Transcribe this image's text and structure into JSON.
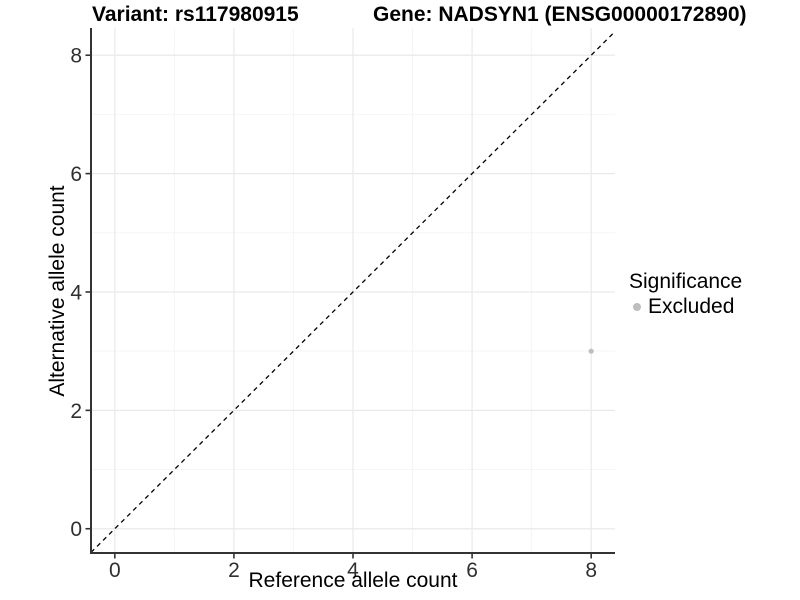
{
  "titles": {
    "variant": "Variant: rs117980915",
    "gene": "Gene: NADSYN1 (ENSG00000172890)"
  },
  "axes": {
    "x_label": "Reference allele count",
    "y_label": "Alternative allele count"
  },
  "legend": {
    "title": "Significance",
    "items": [
      {
        "label": "Excluded",
        "color": "#bebebe"
      }
    ]
  },
  "colors": {
    "background": "#ffffff",
    "point": "#bebebe",
    "grid_major": "#e9e9e9",
    "grid_minor": "#f5f5f5",
    "axis_line": "#333333",
    "tick_text": "#303030",
    "identity_line": "#000000"
  },
  "chart_data": {
    "type": "scatter",
    "title": "Variant: rs117980915 | Gene: NADSYN1 (ENSG00000172890)",
    "xlabel": "Reference allele count",
    "ylabel": "Alternative allele count",
    "xlim": [
      -0.4,
      8.4
    ],
    "ylim": [
      -0.41,
      8.46
    ],
    "x_ticks": [
      0,
      2,
      4,
      6,
      8
    ],
    "y_ticks": [
      0,
      2,
      4,
      6,
      8
    ],
    "x_minor_ticks": [
      1,
      3,
      5,
      7
    ],
    "y_minor_ticks": [
      1,
      3,
      5,
      7
    ],
    "grid": true,
    "legend_position": "right",
    "series": [
      {
        "name": "Excluded",
        "color": "#bebebe",
        "points": [
          {
            "x": 8,
            "y": 3
          }
        ]
      }
    ],
    "identity_line": {
      "slope": 1,
      "intercept": 0,
      "style": "dashed",
      "color": "#000000"
    }
  }
}
